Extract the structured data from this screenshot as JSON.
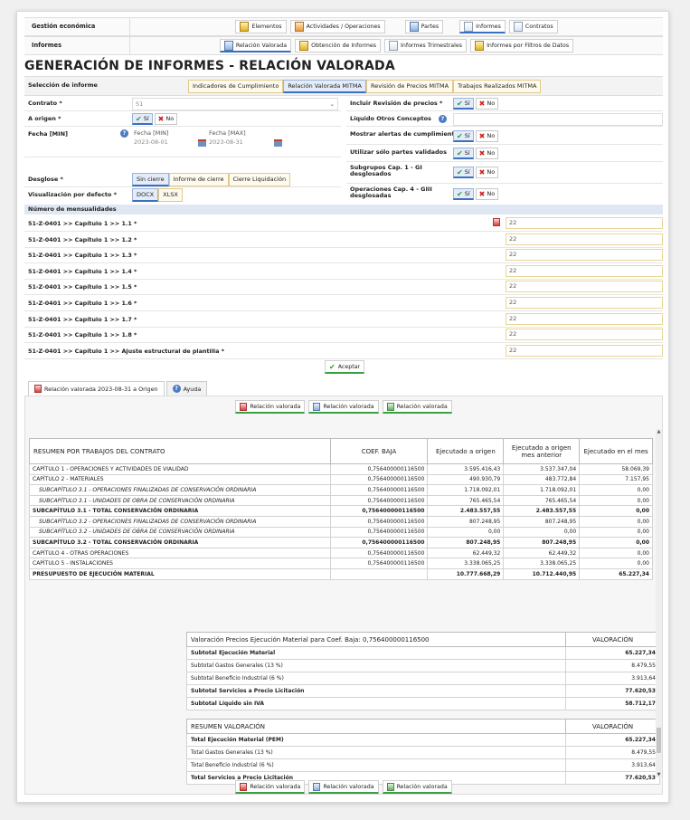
{
  "nav": {
    "row1_label": "Gestión económica",
    "row1_buttons": [
      "Elementos",
      "Actividades / Operaciones",
      "Partes",
      "Informes",
      "Contratos"
    ],
    "row2_label": "Informes",
    "row2_buttons": [
      "Relación Valorada",
      "Obtención de Informes",
      "Informes Trimestrales",
      "Informes por Filtros de Datos"
    ]
  },
  "page_title": "GENERACIÓN DE INFORMES - RELACIÓN VALORADA",
  "selection": {
    "label": "Selección de informe",
    "options": [
      "Indicadores de Cumplimiento",
      "Relación Valorada MITMA",
      "Revisión de Precios MITMA",
      "Trabajos Realizados MITMA"
    ],
    "selected": "Relación Valorada MITMA"
  },
  "form": {
    "contrato_label": "Contrato *",
    "contrato_value": "51",
    "a_origen_label": "A origen *",
    "fecha_label": "Fecha [MIN]",
    "fecha_min_label": "Fecha [MIN]",
    "fecha_min_value": "2023-08-01",
    "fecha_max_label": "Fecha [MAX]",
    "fecha_max_value": "2023-08-31",
    "desglose_label": "Desglose *",
    "desglose_options": [
      "Sin cierre",
      "Informe de cierre",
      "Cierre Liquidación"
    ],
    "visualizacion_label": "Visualización por defecto *",
    "visualizacion_options": [
      "DOCX",
      "XLSX"
    ],
    "incluir_label": "Incluir Revisión de precios *",
    "liquido_label": "Líquido Otros Conceptos",
    "alertas_label": "Mostrar alertas de cumplimiento *",
    "validados_label": "Utilizar sólo partes validados",
    "subgrupos_label": "Subgrupos Cap. 1 - GI desglosados",
    "operaciones_label": "Operaciones Cap. 4 - GIII desglosadas",
    "si": "Sí",
    "no": "No"
  },
  "mensualidades": {
    "header": "Número de mensualidades",
    "rows": [
      {
        "label": "51-Z-0401 >> Capítulo 1 >> 1.1 *",
        "value": "22"
      },
      {
        "label": "51-Z-0401 >> Capítulo 1 >> 1.2 *",
        "value": "22"
      },
      {
        "label": "51-Z-0401 >> Capítulo 1 >> 1.3 *",
        "value": "22"
      },
      {
        "label": "51-Z-0401 >> Capítulo 1 >> 1.4 *",
        "value": "22"
      },
      {
        "label": "51-Z-0401 >> Capítulo 1 >> 1.5 *",
        "value": "22"
      },
      {
        "label": "51-Z-0401 >> Capítulo 1 >> 1.6 *",
        "value": "22"
      },
      {
        "label": "51-Z-0401 >> Capítulo 1 >> 1.7 *",
        "value": "22"
      },
      {
        "label": "51-Z-0401 >> Capítulo 1 >> 1.8 *",
        "value": "22"
      },
      {
        "label": "51-Z-0401 >> Capítulo 1 >> Ajuste estructural de plantilla *",
        "value": "22"
      }
    ]
  },
  "accept_label": "Aceptar",
  "tabs": [
    "Relación valorada 2023-08-31 a Origen",
    "Ayuda"
  ],
  "export_buttons": [
    "Relación valorada",
    "Relación valorada",
    "Relación valorada"
  ],
  "resumen": {
    "headers": [
      "RESUMEN POR TRABAJOS DEL CONTRATO",
      "COEF. BAJA",
      "Ejecutado a origen",
      "Ejecutado a origen mes anterior",
      "Ejecutado en el mes"
    ],
    "rows": [
      {
        "c": [
          "CAPÍTULO 1 - OPERACIONES Y ACTIVIDADES DE VIALIDAD",
          "0,756400000116500",
          "3.595.416,43",
          "3.537.347,04",
          "58.069,39"
        ],
        "s": ""
      },
      {
        "c": [
          "CAPÍTULO 2 - MATERIALES",
          "0,756400000116500",
          "490.930,79",
          "483.772,84",
          "7.157,95"
        ],
        "s": ""
      },
      {
        "c": [
          "SUBCAPÍTULO 3.1 - OPERACIONES FINALIZADAS DE CONSERVACIÓN ORDINARIA",
          "0,756400000116500",
          "1.718.092,01",
          "1.718.092,01",
          "0,00"
        ],
        "s": "it"
      },
      {
        "c": [
          "SUBCAPÍTULO 3.1 - UNIDADES DE OBRA DE CONSERVACIÓN ORDINARIA",
          "0,756400000116500",
          "765.465,54",
          "765.465,54",
          "0,00"
        ],
        "s": "it"
      },
      {
        "c": [
          "SUBCAPÍTULO 3.1 - TOTAL CONSERVACIÓN ORDINARIA",
          "0,756400000116500",
          "2.483.557,55",
          "2.483.557,55",
          "0,00"
        ],
        "s": "b"
      },
      {
        "c": [
          "SUBCAPÍTULO 3.2 - OPERACIONES FINALIZADAS DE CONSERVACIÓN ORDINARIA",
          "0,756400000116500",
          "807.248,95",
          "807.248,95",
          "0,00"
        ],
        "s": "it"
      },
      {
        "c": [
          "SUBCAPÍTULO 3.2 - UNIDADES DE OBRA DE CONSERVACIÓN ORDINARIA",
          "0,756400000116500",
          "0,00",
          "0,00",
          "0,00"
        ],
        "s": "it"
      },
      {
        "c": [
          "SUBCAPÍTULO 3.2 - TOTAL CONSERVACIÓN ORDINARIA",
          "0,756400000116500",
          "807.248,95",
          "807.248,95",
          "0,00"
        ],
        "s": "b"
      },
      {
        "c": [
          "CAPÍTULO 4 - OTRAS OPERACIONES",
          "0,756400000116500",
          "62.449,32",
          "62.449,32",
          "0,00"
        ],
        "s": ""
      },
      {
        "c": [
          "CAPÍTULO 5 - INSTALACIONES",
          "0,756400000116500",
          "3.338.065,25",
          "3.338.065,25",
          "0,00"
        ],
        "s": ""
      },
      {
        "c": [
          "PRESUPUESTO DE EJECUCIÓN MATERIAL",
          "",
          "10.777.668,29",
          "10.712.440,95",
          "65.227,34"
        ],
        "s": "b"
      }
    ]
  },
  "valoracion": {
    "headers": [
      "Valoración Precios Ejecución Material para Coef. Baja: 0,756400000116500",
      "VALORACIÓN"
    ],
    "rows": [
      {
        "c": [
          "Subtotal Ejecución Material",
          "65.227,34"
        ],
        "s": "b"
      },
      {
        "c": [
          "Subtotal Gastos Generales (13 %)",
          "8.479,55"
        ],
        "s": ""
      },
      {
        "c": [
          "Subtotal Beneficio Industrial (6 %)",
          "3.913,64"
        ],
        "s": ""
      },
      {
        "c": [
          "Subtotal Servicios a Precio Licitación",
          "77.620,53"
        ],
        "s": "b"
      },
      {
        "c": [
          "Subtotal Líquido sin IVA",
          "58.712,17"
        ],
        "s": "b"
      }
    ]
  },
  "resumen_valoracion": {
    "headers": [
      "RESUMEN VALORACIÓN",
      "VALORACIÓN"
    ],
    "rows": [
      {
        "c": [
          "Total Ejecución Material (PEM)",
          "65.227,34"
        ],
        "s": "b"
      },
      {
        "c": [
          "Total Gastos Generales (13 %)",
          "8.479,55"
        ],
        "s": ""
      },
      {
        "c": [
          "Total Beneficio Industrial (6 %)",
          "3.913,64"
        ],
        "s": ""
      },
      {
        "c": [
          "Total Servicios a Precio Licitación",
          "77.620,53"
        ],
        "s": "b"
      }
    ]
  },
  "colors": {
    "accent_blue": "#3a70c0",
    "accent_green": "#3aa043",
    "section_bg": "#dfe7f2"
  }
}
